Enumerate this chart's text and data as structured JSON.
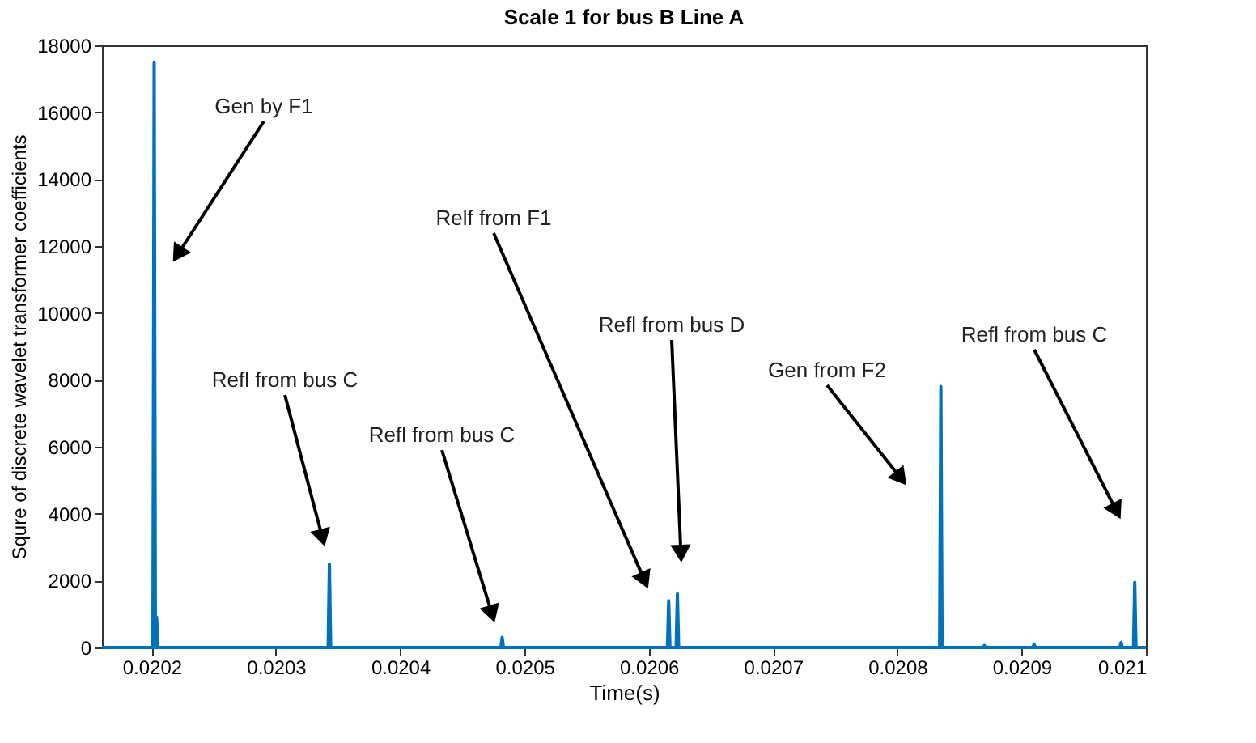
{
  "chart_data": {
    "type": "line",
    "title": "Scale 1 for bus B Line A",
    "xlabel": "Time(s)",
    "ylabel": "Squre of discrete wavelet transformer coefficients",
    "x": [
      0.02016,
      0.020201,
      0.020202,
      0.020203,
      0.020204,
      0.020205,
      0.020342,
      0.020343,
      0.020344,
      0.020481,
      0.020482,
      0.020483,
      0.020615,
      0.020616,
      0.020617,
      0.020622,
      0.020623,
      0.020624,
      0.020834,
      0.020835,
      0.020836,
      0.020869,
      0.02087,
      0.020871,
      0.020909,
      0.02091,
      0.020911,
      0.020979,
      0.02098,
      0.020981,
      0.02099,
      0.020991,
      0.020992,
      0.021
    ],
    "series": [
      {
        "color": "#0072bd",
        "values": [
          0,
          0,
          17500,
          0,
          900,
          0,
          0,
          2500,
          0,
          0,
          300,
          0,
          0,
          1400,
          0,
          0,
          1600,
          0,
          0,
          7800,
          0,
          0,
          60,
          0,
          0,
          100,
          0,
          0,
          150,
          0,
          0,
          1950,
          0,
          0
        ]
      }
    ],
    "xlim": [
      0.02016,
      0.021
    ],
    "xticks": [
      0.0202,
      0.0203,
      0.0204,
      0.0205,
      0.0206,
      0.0207,
      0.0208,
      0.0209,
      0.021
    ],
    "ylim": [
      0,
      18000
    ],
    "yticks": [
      0,
      2000,
      4000,
      6000,
      8000,
      10000,
      12000,
      14000,
      16000,
      18000
    ],
    "grid": false,
    "marker": "none",
    "line_style": "solid",
    "annotations": [
      "Gen by F1",
      "Refl from bus C",
      "Refl from bus C",
      "Relf from F1",
      "Refl from bus D",
      "Gen from F2",
      "Refl from bus C"
    ]
  }
}
